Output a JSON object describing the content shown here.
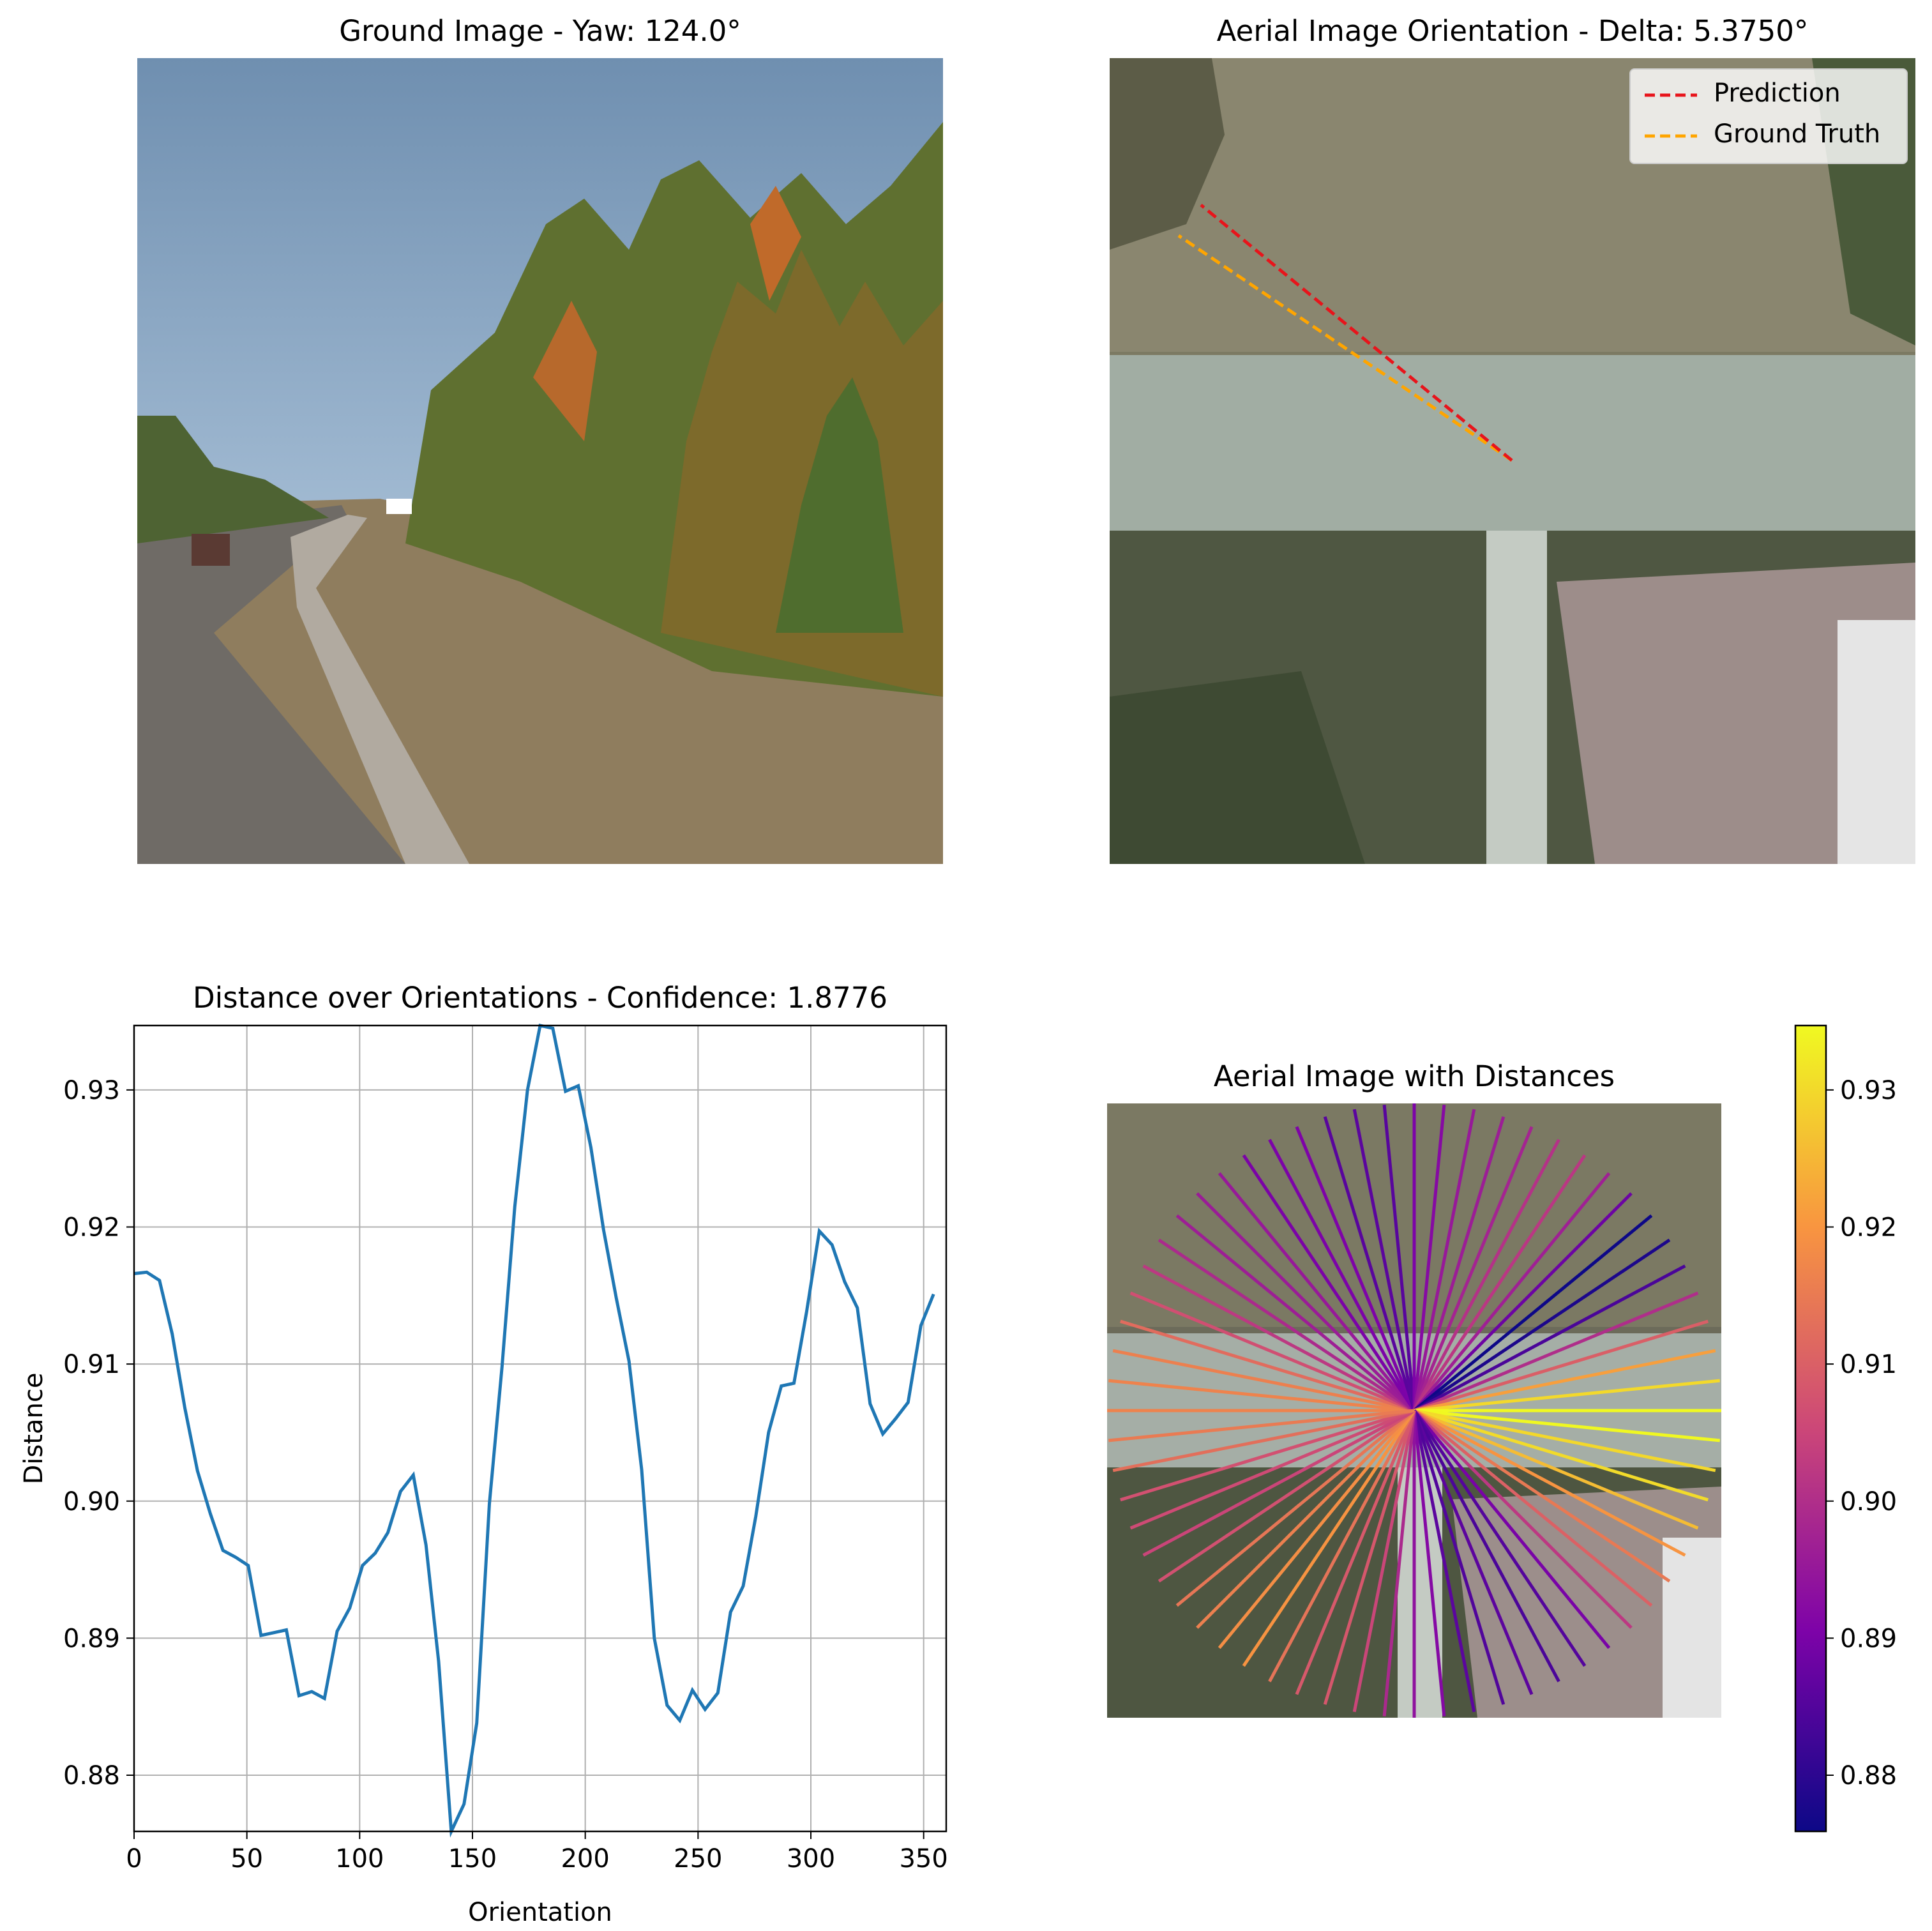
{
  "panels": {
    "ground": {
      "title": "Ground Image - Yaw: 124.0°"
    },
    "aerial": {
      "title": "Aerial Image Orientation - Delta: 5.3750°",
      "legend": {
        "prediction": "Prediction",
        "ground_truth": "Ground Truth"
      },
      "colors": {
        "prediction": "#e8141b",
        "ground_truth": "#ffa500"
      }
    },
    "line": {
      "title": "Distance over Orientations - Confidence: 1.8776"
    },
    "distances": {
      "title": "Aerial Image with Distances"
    }
  },
  "chart_data": [
    {
      "type": "line",
      "title": "Distance over Orientations - Confidence: 1.8776",
      "xlabel": "Orientation",
      "ylabel": "Distance",
      "xlim": [
        0,
        360
      ],
      "ylim": [
        0.8759,
        0.9347
      ],
      "xticks": [
        0,
        50,
        100,
        150,
        200,
        250,
        300,
        350
      ],
      "yticks": [
        0.88,
        0.89,
        0.9,
        0.91,
        0.92,
        0.93
      ],
      "ytick_labels": [
        "0.88",
        "0.89",
        "0.90",
        "0.91",
        "0.92",
        "0.93"
      ],
      "grid": true,
      "color": "#1f77b4",
      "x": [
        0,
        5.6,
        11.25,
        16.9,
        22.5,
        28.1,
        33.75,
        39.4,
        45,
        50.6,
        56.25,
        61.9,
        67.5,
        73.1,
        78.75,
        84.4,
        90,
        95.6,
        101.25,
        106.9,
        112.5,
        118.1,
        123.75,
        129.4,
        135,
        140.6,
        146.25,
        151.9,
        157.5,
        163.1,
        168.75,
        174.4,
        180,
        185.6,
        191.25,
        196.9,
        202.5,
        208.1,
        213.75,
        219.4,
        225,
        230.6,
        236.25,
        241.9,
        247.5,
        253.1,
        258.75,
        264.4,
        270,
        275.6,
        281.25,
        286.9,
        292.5,
        298.1,
        303.75,
        309.4,
        315,
        320.6,
        326.25,
        331.9,
        337.5,
        343.1,
        348.75,
        354.4
      ],
      "y": [
        0.9166,
        0.9167,
        0.9161,
        0.9122,
        0.9068,
        0.9022,
        0.8991,
        0.8964,
        0.8959,
        0.8953,
        0.8902,
        0.8904,
        0.8906,
        0.8858,
        0.8861,
        0.8856,
        0.8905,
        0.8922,
        0.8953,
        0.8962,
        0.8977,
        0.9007,
        0.9019,
        0.8968,
        0.8883,
        0.8759,
        0.8779,
        0.8838,
        0.8998,
        0.9098,
        0.9215,
        0.93,
        0.9347,
        0.9345,
        0.9299,
        0.9303,
        0.9258,
        0.9198,
        0.9148,
        0.9102,
        0.9023,
        0.89,
        0.8851,
        0.884,
        0.8862,
        0.8848,
        0.886,
        0.8919,
        0.8938,
        0.8989,
        0.905,
        0.9084,
        0.9086,
        0.9138,
        0.9197,
        0.9187,
        0.916,
        0.9141,
        0.9071,
        0.9049,
        0.906,
        0.9072,
        0.9128,
        0.9151
      ]
    },
    {
      "type": "heatmap",
      "title": "Aerial Image with Distances",
      "colormap": "plasma",
      "colorbar_range": [
        0.8759,
        0.9347
      ],
      "colorbar_ticks": [
        0.88,
        0.89,
        0.9,
        0.91,
        0.92,
        0.93
      ],
      "colorbar_labels": [
        "0.88",
        "0.89",
        "0.90",
        "0.91",
        "0.92",
        "0.93"
      ]
    }
  ]
}
